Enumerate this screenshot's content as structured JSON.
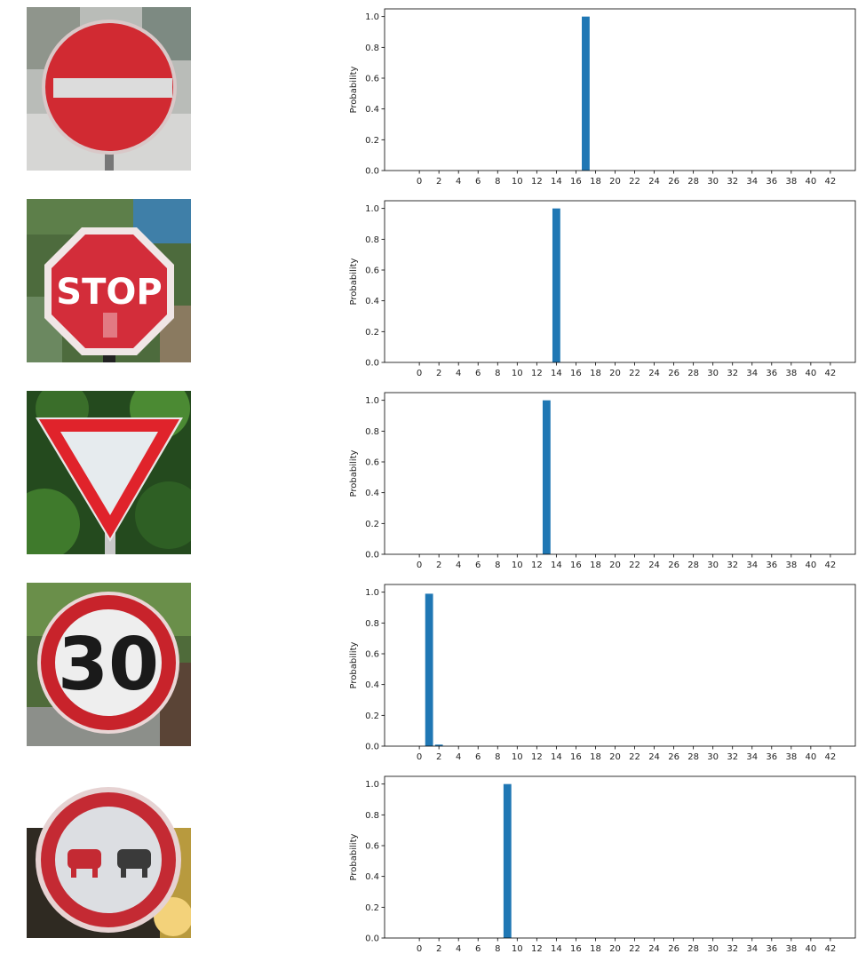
{
  "chart_data": [
    {
      "type": "bar",
      "ylabel": "Probability",
      "ylim": [
        0,
        1.0
      ],
      "xticks": [
        0,
        2,
        4,
        6,
        8,
        10,
        12,
        14,
        16,
        18,
        20,
        22,
        24,
        26,
        28,
        30,
        32,
        34,
        36,
        38,
        40,
        42
      ],
      "yticks": [
        "0.0",
        "0.2",
        "0.4",
        "0.6",
        "0.8",
        "1.0"
      ],
      "values": [
        {
          "x": 17,
          "y": 1.0
        }
      ],
      "bar_color": "#1f77b4"
    },
    {
      "type": "bar",
      "ylabel": "Probability",
      "ylim": [
        0,
        1.0
      ],
      "xticks": [
        0,
        2,
        4,
        6,
        8,
        10,
        12,
        14,
        16,
        18,
        20,
        22,
        24,
        26,
        28,
        30,
        32,
        34,
        36,
        38,
        40,
        42
      ],
      "yticks": [
        "0.0",
        "0.2",
        "0.4",
        "0.6",
        "0.8",
        "1.0"
      ],
      "values": [
        {
          "x": 14,
          "y": 1.0
        }
      ],
      "bar_color": "#1f77b4"
    },
    {
      "type": "bar",
      "ylabel": "Probability",
      "ylim": [
        0,
        1.0
      ],
      "xticks": [
        0,
        2,
        4,
        6,
        8,
        10,
        12,
        14,
        16,
        18,
        20,
        22,
        24,
        26,
        28,
        30,
        32,
        34,
        36,
        38,
        40,
        42
      ],
      "yticks": [
        "0.0",
        "0.2",
        "0.4",
        "0.6",
        "0.8",
        "1.0"
      ],
      "values": [
        {
          "x": 13,
          "y": 1.0
        }
      ],
      "bar_color": "#1f77b4"
    },
    {
      "type": "bar",
      "ylabel": "Probability",
      "ylim": [
        0,
        1.0
      ],
      "xticks": [
        0,
        2,
        4,
        6,
        8,
        10,
        12,
        14,
        16,
        18,
        20,
        22,
        24,
        26,
        28,
        30,
        32,
        34,
        36,
        38,
        40,
        42
      ],
      "yticks": [
        "0.0",
        "0.2",
        "0.4",
        "0.6",
        "0.8",
        "1.0"
      ],
      "values": [
        {
          "x": 1,
          "y": 0.99
        },
        {
          "x": 2,
          "y": 0.01
        }
      ],
      "bar_color": "#1f77b4"
    },
    {
      "type": "bar",
      "ylabel": "Probability",
      "ylim": [
        0,
        1.0
      ],
      "xticks": [
        0,
        2,
        4,
        6,
        8,
        10,
        12,
        14,
        16,
        18,
        20,
        22,
        24,
        26,
        28,
        30,
        32,
        34,
        36,
        38,
        40,
        42
      ],
      "yticks": [
        "0.0",
        "0.2",
        "0.4",
        "0.6",
        "0.8",
        "1.0"
      ],
      "values": [
        {
          "x": 9,
          "y": 1.0
        }
      ],
      "bar_color": "#1f77b4"
    }
  ],
  "images": [
    {
      "sign": "no-entry-sign"
    },
    {
      "sign": "stop-sign",
      "text": "STOP"
    },
    {
      "sign": "yield-sign"
    },
    {
      "sign": "speed-limit-sign",
      "text": "30"
    },
    {
      "sign": "no-passing-sign"
    }
  ]
}
